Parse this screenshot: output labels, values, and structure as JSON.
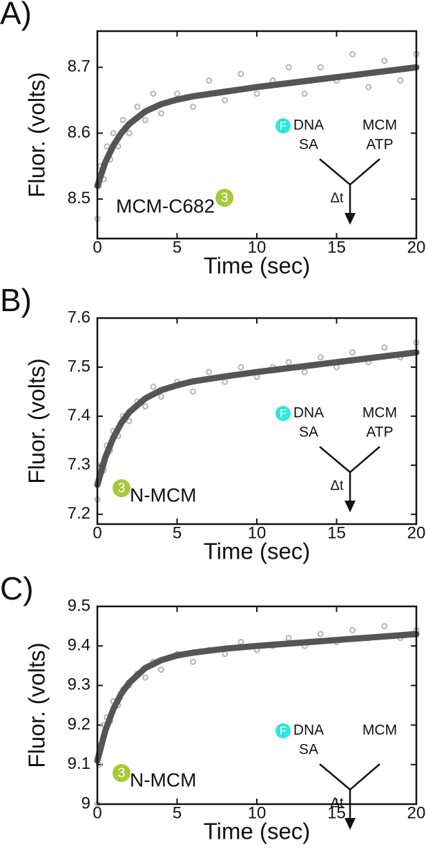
{
  "chart_data": [
    {
      "type": "scatter",
      "panel": "A)",
      "xlabel": "Time (sec)",
      "ylabel": "Fluor. (volts)",
      "xlim": [
        0,
        20
      ],
      "xticks": [
        0,
        5,
        10,
        15,
        20
      ],
      "ylim": [
        8.44,
        8.755
      ],
      "yticks": [
        8.5,
        8.6,
        8.7
      ],
      "series": [
        {
          "type": "scatter",
          "color": "#b5b5b5",
          "x": [
            0,
            0.1,
            0.2,
            0.4,
            0.6,
            0.8,
            1,
            1.3,
            1.6,
            2,
            2.5,
            3,
            3.5,
            4,
            5,
            6,
            7,
            8,
            9,
            10,
            11,
            12,
            13,
            14,
            15,
            16,
            17,
            18,
            19,
            20
          ],
          "values": [
            8.47,
            8.52,
            8.55,
            8.53,
            8.58,
            8.56,
            8.6,
            8.58,
            8.62,
            8.6,
            8.64,
            8.62,
            8.66,
            8.63,
            8.66,
            8.64,
            8.68,
            8.65,
            8.69,
            8.66,
            8.68,
            8.7,
            8.66,
            8.7,
            8.68,
            8.72,
            8.67,
            8.71,
            8.68,
            8.72
          ]
        },
        {
          "type": "line",
          "color": "#555555",
          "x": [
            0,
            0.5,
            1,
            1.5,
            2,
            3,
            4,
            5,
            6,
            8,
            10,
            12,
            14,
            16,
            18,
            20
          ],
          "values": [
            8.52,
            8.556,
            8.581,
            8.6,
            8.614,
            8.633,
            8.644,
            8.651,
            8.656,
            8.663,
            8.67,
            8.676,
            8.682,
            8.688,
            8.694,
            8.7
          ]
        }
      ],
      "annotations": {
        "construct": "MCM-C682",
        "label_badge": "3",
        "dye_badge": "F",
        "syringe1": [
          "DNA",
          "SA"
        ],
        "syringe2": [
          "MCM",
          "ATP"
        ],
        "delay": "Δt"
      }
    },
    {
      "type": "scatter",
      "panel": "B)",
      "xlabel": "Time (sec)",
      "ylabel": "Fluor. (volts)",
      "xlim": [
        0,
        20
      ],
      "xticks": [
        0,
        5,
        10,
        15,
        20
      ],
      "ylim": [
        7.18,
        7.6
      ],
      "yticks": [
        7.2,
        7.3,
        7.4,
        7.5,
        7.6
      ],
      "series": [
        {
          "type": "scatter",
          "color": "#b5b5b5",
          "x": [
            0,
            0.1,
            0.2,
            0.4,
            0.6,
            0.8,
            1,
            1.3,
            1.6,
            2,
            2.5,
            3,
            3.5,
            4,
            5,
            6,
            7,
            8,
            9,
            10,
            11,
            12,
            13,
            14,
            15,
            16,
            17,
            18,
            19,
            20
          ],
          "values": [
            7.23,
            7.27,
            7.3,
            7.29,
            7.34,
            7.33,
            7.37,
            7.36,
            7.4,
            7.39,
            7.43,
            7.42,
            7.46,
            7.44,
            7.47,
            7.45,
            7.49,
            7.47,
            7.5,
            7.48,
            7.5,
            7.51,
            7.49,
            7.52,
            7.5,
            7.53,
            7.51,
            7.54,
            7.52,
            7.55
          ]
        },
        {
          "type": "line",
          "color": "#555555",
          "x": [
            0,
            0.5,
            1,
            1.5,
            2,
            3,
            4,
            5,
            6,
            8,
            10,
            12,
            14,
            16,
            18,
            20
          ],
          "values": [
            7.26,
            7.316,
            7.356,
            7.386,
            7.408,
            7.436,
            7.453,
            7.463,
            7.471,
            7.481,
            7.49,
            7.498,
            7.506,
            7.514,
            7.522,
            7.53
          ]
        }
      ],
      "annotations": {
        "construct": "N-MCM",
        "label_badge": "3",
        "dye_badge": "F",
        "syringe1": [
          "DNA",
          "SA"
        ],
        "syringe2": [
          "MCM",
          "ATP"
        ],
        "delay": "Δt"
      }
    },
    {
      "type": "scatter",
      "panel": "C)",
      "xlabel": "Time (sec)",
      "ylabel": "Fluor. (volts)",
      "xlim": [
        0,
        20
      ],
      "xticks": [
        0,
        5,
        10,
        15,
        20
      ],
      "ylim": [
        9,
        9.5
      ],
      "yticks": [
        9,
        9.1,
        9.2,
        9.3,
        9.4,
        9.5
      ],
      "series": [
        {
          "type": "scatter",
          "color": "#b5b5b5",
          "x": [
            0,
            0.1,
            0.2,
            0.4,
            0.6,
            0.8,
            1,
            1.3,
            1.6,
            2,
            2.5,
            3,
            3.5,
            4,
            5,
            6,
            7,
            8,
            9,
            10,
            11,
            12,
            13,
            14,
            15,
            16,
            17,
            18,
            19,
            20
          ],
          "values": [
            9.0,
            9.1,
            9.15,
            9.2,
            9.22,
            9.21,
            9.26,
            9.25,
            9.29,
            9.3,
            9.33,
            9.32,
            9.36,
            9.34,
            9.38,
            9.36,
            9.39,
            9.38,
            9.41,
            9.39,
            9.4,
            9.42,
            9.4,
            9.43,
            9.41,
            9.44,
            9.42,
            9.45,
            9.42,
            9.44
          ]
        },
        {
          "type": "line",
          "color": "#555555",
          "x": [
            0,
            0.5,
            1,
            1.5,
            2,
            3,
            4,
            5,
            6,
            8,
            10,
            12,
            14,
            16,
            18,
            20
          ],
          "values": [
            9.11,
            9.186,
            9.24,
            9.279,
            9.307,
            9.344,
            9.364,
            9.376,
            9.383,
            9.393,
            9.4,
            9.406,
            9.412,
            9.418,
            9.424,
            9.43
          ]
        }
      ],
      "annotations": {
        "construct": "N-MCM",
        "label_badge": "3",
        "dye_badge": "F",
        "syringe1": [
          "DNA",
          "SA"
        ],
        "syringe2": [
          "MCM"
        ],
        "delay": "Δt"
      }
    }
  ]
}
